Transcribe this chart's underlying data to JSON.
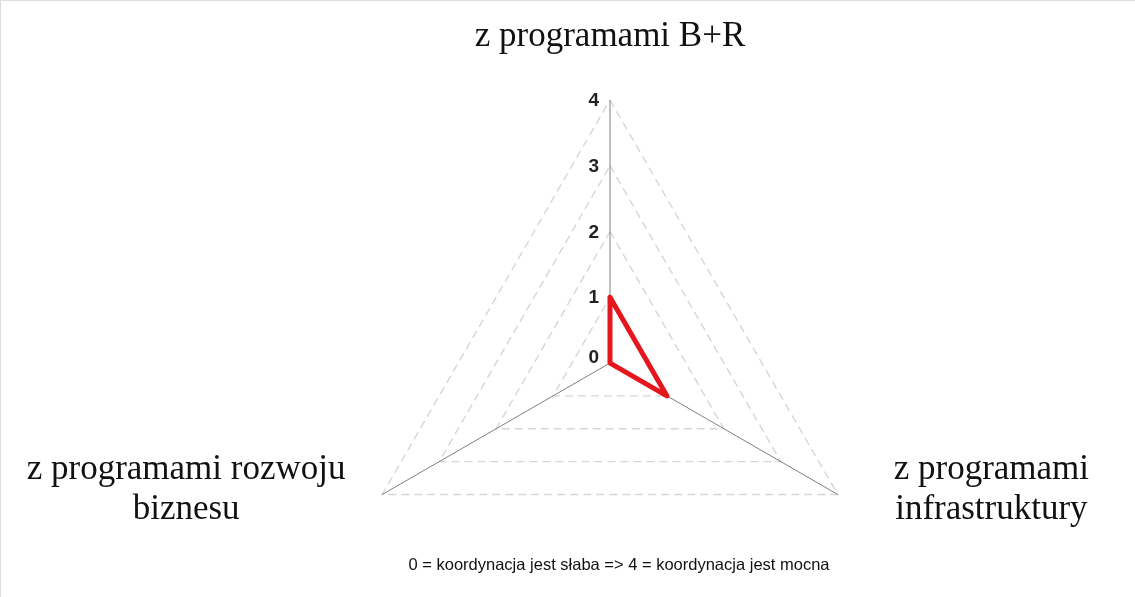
{
  "chart_data": {
    "type": "radar",
    "categories": [
      "z programami B+R",
      "z programami infrastruktury",
      "z programami rozwoju biznesu"
    ],
    "series": [
      {
        "color": "#e3171d",
        "values": [
          1,
          1,
          0
        ]
      }
    ],
    "ylim": [
      0,
      4
    ],
    "yticks": [
      0,
      1,
      2,
      3,
      4
    ],
    "grid": true,
    "line_style": "solid",
    "annotations": [
      "0 = koordynacja jest słaba => 4 = koordynacja jest mocna"
    ]
  }
}
